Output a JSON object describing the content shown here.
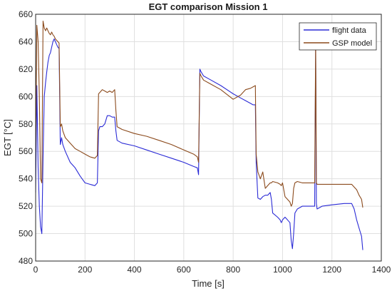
{
  "chart_data": {
    "type": "line",
    "title": "EGT comparison Mission 1",
    "xlabel": "Time [s]",
    "ylabel": "EGT [°C]",
    "xlim": [
      0,
      1400
    ],
    "ylim": [
      480,
      660
    ],
    "xticks": [
      0,
      200,
      400,
      600,
      800,
      1000,
      1200,
      1400
    ],
    "yticks": [
      480,
      500,
      520,
      540,
      560,
      580,
      600,
      620,
      640,
      660
    ],
    "grid": true,
    "legend_position": "top-right",
    "series": [
      {
        "name": "flight data",
        "color": "#2b2bd6",
        "x": [
          0,
          5,
          10,
          15,
          20,
          25,
          30,
          35,
          40,
          45,
          50,
          55,
          60,
          65,
          70,
          75,
          80,
          85,
          90,
          95,
          100,
          105,
          110,
          120,
          140,
          160,
          180,
          200,
          220,
          240,
          250,
          255,
          260,
          270,
          280,
          290,
          300,
          310,
          320,
          325,
          330,
          350,
          400,
          450,
          500,
          550,
          600,
          640,
          655,
          660,
          665,
          670,
          680,
          700,
          750,
          800,
          830,
          850,
          870,
          880,
          890,
          893,
          900,
          910,
          920,
          930,
          940,
          950,
          955,
          960,
          980,
          990,
          995,
          1000,
          1010,
          1020,
          1030,
          1035,
          1040,
          1045,
          1050,
          1060,
          1080,
          1100,
          1120,
          1130,
          1134,
          1137,
          1140,
          1160,
          1200,
          1250,
          1280,
          1290,
          1300,
          1310,
          1320,
          1325
        ],
        "values": [
          530,
          608,
          548,
          520,
          505,
          500,
          555,
          600,
          610,
          618,
          625,
          630,
          632,
          636,
          640,
          642,
          640,
          638,
          636,
          635,
          565,
          570,
          565,
          560,
          552,
          548,
          542,
          537,
          536,
          535,
          537,
          575,
          578,
          578,
          580,
          586,
          586,
          585,
          585,
          575,
          568,
          566,
          564,
          561,
          558,
          555,
          552,
          549,
          548,
          543,
          620,
          618,
          615,
          613,
          608,
          602,
          599,
          597,
          595,
          594,
          594,
          552,
          526,
          525,
          527,
          528,
          528,
          530,
          525,
          515,
          512,
          510,
          508,
          510,
          512,
          510,
          508,
          495,
          489,
          500,
          515,
          518,
          520,
          520,
          520,
          520,
          635,
          522,
          518,
          520,
          521,
          522,
          522,
          518,
          510,
          504,
          498,
          488
        ]
      },
      {
        "name": "GSP model",
        "color": "#8b4a1c",
        "x": [
          0,
          5,
          10,
          15,
          20,
          25,
          30,
          35,
          40,
          45,
          50,
          55,
          60,
          65,
          70,
          75,
          80,
          85,
          90,
          95,
          100,
          105,
          110,
          120,
          140,
          160,
          180,
          200,
          220,
          240,
          250,
          255,
          260,
          270,
          280,
          290,
          300,
          310,
          320,
          325,
          330,
          350,
          400,
          450,
          500,
          550,
          600,
          640,
          655,
          660,
          665,
          670,
          680,
          700,
          750,
          800,
          830,
          850,
          870,
          880,
          890,
          893,
          900,
          910,
          920,
          930,
          940,
          950,
          955,
          960,
          980,
          990,
          995,
          1000,
          1010,
          1020,
          1030,
          1035,
          1040,
          1045,
          1050,
          1060,
          1080,
          1100,
          1120,
          1130,
          1134,
          1137,
          1140,
          1160,
          1200,
          1250,
          1280,
          1290,
          1300,
          1310,
          1320,
          1325
        ],
        "values": [
          560,
          652,
          640,
          600,
          540,
          537,
          655,
          650,
          648,
          650,
          648,
          646,
          645,
          647,
          645,
          644,
          642,
          641,
          640,
          639,
          578,
          580,
          575,
          570,
          566,
          562,
          560,
          558,
          556,
          555,
          557,
          602,
          603,
          605,
          604,
          603,
          604,
          603,
          605,
          590,
          578,
          576,
          573,
          571,
          568,
          565,
          561,
          558,
          556,
          552,
          617,
          615,
          612,
          610,
          605,
          598,
          601,
          605,
          606,
          607,
          608,
          558,
          545,
          540,
          545,
          533,
          535,
          537,
          537,
          538,
          537,
          536,
          535,
          537,
          527,
          525,
          523,
          520,
          522,
          533,
          537,
          538,
          537,
          537,
          537,
          537,
          640,
          537,
          536,
          536,
          536,
          536,
          536,
          534,
          532,
          528,
          525,
          519
        ]
      }
    ]
  }
}
